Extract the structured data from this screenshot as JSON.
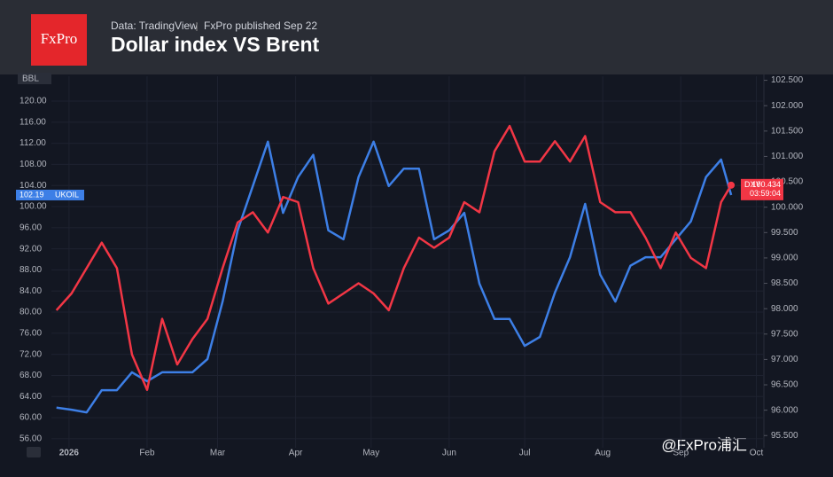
{
  "header": {
    "logo": "FxPro",
    "source": "Data: TradingView",
    "published": "FxPro published Sep 22",
    "watermark": "@FxPro浦汇"
  },
  "chart_data": {
    "type": "line",
    "title": "Dollar index VS Brent",
    "y_label": "BBL",
    "countdown": "03:59:04",
    "x": [
      -5,
      1,
      7,
      13,
      19,
      25,
      31,
      37,
      43,
      49,
      55,
      61,
      67,
      73,
      79,
      85,
      91,
      97,
      103,
      109,
      115,
      121,
      127,
      133,
      139,
      145,
      151,
      157,
      163,
      169,
      175,
      181,
      187,
      193,
      199,
      205,
      211,
      217,
      223,
      229,
      235,
      241,
      247,
      253,
      259,
      263
    ],
    "xlim": [
      -7,
      276
    ],
    "xticks": [
      {
        "value": 0,
        "label": "2026"
      },
      {
        "value": 31,
        "label": "Feb"
      },
      {
        "value": 59,
        "label": "Mar"
      },
      {
        "value": 90,
        "label": "Apr"
      },
      {
        "value": 120,
        "label": "May"
      },
      {
        "value": 151,
        "label": "Jun"
      },
      {
        "value": 181,
        "label": "Jul"
      },
      {
        "value": 212,
        "label": "Aug"
      },
      {
        "value": 243,
        "label": "Sep"
      },
      {
        "value": 273,
        "label": "Oct"
      }
    ],
    "ylim": [
      54.3,
      124.7
    ],
    "yticks": [
      {
        "value": 56,
        "label": "56.00"
      },
      {
        "value": 60,
        "label": "60.00"
      },
      {
        "value": 64,
        "label": "64.00"
      },
      {
        "value": 68,
        "label": "68.00"
      },
      {
        "value": 72,
        "label": "72.00"
      },
      {
        "value": 76,
        "label": "76.00"
      },
      {
        "value": 80,
        "label": "80.00"
      },
      {
        "value": 84,
        "label": "84.00"
      },
      {
        "value": 88,
        "label": "88.00"
      },
      {
        "value": 92,
        "label": "92.00"
      },
      {
        "value": 96,
        "label": "96.00"
      },
      {
        "value": 100,
        "label": "100.00"
      },
      {
        "value": 104,
        "label": "104.00"
      },
      {
        "value": 108,
        "label": "108.00"
      },
      {
        "value": 112,
        "label": "112.00"
      },
      {
        "value": 116,
        "label": "116.00"
      },
      {
        "value": 120,
        "label": "120.00"
      }
    ],
    "y2lim": [
      95.26,
      102.58
    ],
    "y2ticks": [
      {
        "value": 95.5,
        "label": "95.500"
      },
      {
        "value": 96,
        "label": "96.000"
      },
      {
        "value": 96.5,
        "label": "96.500"
      },
      {
        "value": 97,
        "label": "97.000"
      },
      {
        "value": 97.5,
        "label": "97.500"
      },
      {
        "value": 98,
        "label": "98.000"
      },
      {
        "value": 98.5,
        "label": "98.500"
      },
      {
        "value": 99,
        "label": "99.000"
      },
      {
        "value": 99.5,
        "label": "99.500"
      },
      {
        "value": 100,
        "label": "100.000"
      },
      {
        "value": 100.5,
        "label": "100.500"
      },
      {
        "value": 101,
        "label": "101.000"
      },
      {
        "value": 101.5,
        "label": "101.500"
      },
      {
        "value": 102,
        "label": "102.000"
      },
      {
        "value": 102.5,
        "label": "102.500"
      }
    ],
    "grid": true,
    "series": [
      {
        "name": "UKOIL",
        "color": "#3d7fe6",
        "axis": "y",
        "last_label": "102.19",
        "values": [
          61.9,
          61.5,
          61,
          65.2,
          65.2,
          68.6,
          66.9,
          68.6,
          68.6,
          68.6,
          71.1,
          82,
          95.5,
          103.9,
          112.3,
          98.8,
          105.6,
          109.8,
          95.5,
          93.8,
          105.6,
          112.3,
          103.9,
          107.2,
          107.2,
          93.8,
          95.5,
          98.8,
          85.4,
          78.7,
          78.7,
          73.6,
          75.3,
          83.7,
          90.4,
          100.5,
          87.1,
          82,
          88.8,
          90.4,
          90.4,
          93.8,
          97.2,
          105.6,
          108.9,
          102.19
        ]
      },
      {
        "name": "DXY",
        "color": "#f23645",
        "axis": "y2",
        "last_label": "100.434",
        "values": [
          97.97,
          98.3,
          98.8,
          99.3,
          98.8,
          97.1,
          96.4,
          97.8,
          96.9,
          97.4,
          97.8,
          98.8,
          99.7,
          99.9,
          99.5,
          100.2,
          100.1,
          98.8,
          98.1,
          98.3,
          98.5,
          98.3,
          97.97,
          98.8,
          99.4,
          99.2,
          99.4,
          100.1,
          99.9,
          101.1,
          101.6,
          100.9,
          100.9,
          101.3,
          100.9,
          101.4,
          100.1,
          99.9,
          99.9,
          99.4,
          98.8,
          99.5,
          99.0,
          98.8,
          100.1,
          100.434
        ]
      }
    ]
  }
}
